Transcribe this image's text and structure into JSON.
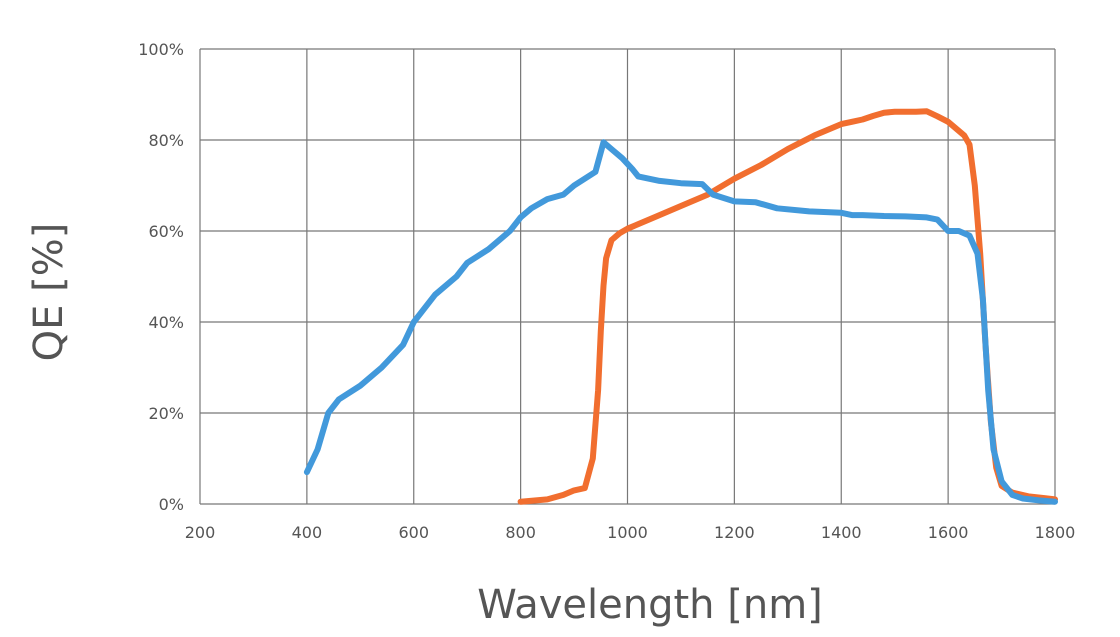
{
  "chart_data": {
    "type": "line",
    "title": "",
    "xlabel": "Wavelength [nm]",
    "ylabel": "QE [%]",
    "xlim": [
      200,
      1800
    ],
    "ylim": [
      0,
      100
    ],
    "xticks": [
      200,
      400,
      600,
      800,
      1000,
      1200,
      1400,
      1600,
      1800
    ],
    "xtick_labels": [
      "200",
      "400",
      "600",
      "800",
      "1000",
      "1200",
      "1400",
      "1600",
      "1800"
    ],
    "yticks": [
      0,
      20,
      40,
      60,
      80,
      100
    ],
    "ytick_labels": [
      "0%",
      "20%",
      "40%",
      "60%",
      "80%",
      "100%"
    ],
    "grid": true,
    "series": [
      {
        "name": "blue",
        "color": "#4299DB",
        "x": [
          400,
          420,
          440,
          460,
          500,
          540,
          580,
          600,
          640,
          680,
          700,
          740,
          780,
          800,
          820,
          850,
          880,
          900,
          940,
          955,
          970,
          990,
          1010,
          1020,
          1060,
          1100,
          1140,
          1160,
          1200,
          1240,
          1280,
          1340,
          1400,
          1420,
          1440,
          1480,
          1520,
          1560,
          1580,
          1600,
          1620,
          1640,
          1655,
          1665,
          1675,
          1685,
          1700,
          1720,
          1740,
          1770,
          1800
        ],
        "y": [
          7,
          12,
          20,
          23,
          26,
          30,
          35,
          40,
          46,
          50,
          53,
          56,
          60,
          63,
          65,
          67,
          68,
          70,
          73,
          79.5,
          78,
          76,
          73.5,
          72,
          71,
          70.5,
          70.3,
          68,
          66.5,
          66.3,
          65,
          64.3,
          64,
          63.5,
          63.5,
          63.3,
          63.2,
          63,
          62.5,
          60,
          60,
          59,
          55,
          45,
          25,
          12,
          5,
          2,
          1.2,
          0.8,
          0.5
        ]
      },
      {
        "name": "orange",
        "color": "#F16E2F",
        "x": [
          800,
          850,
          880,
          900,
          920,
          935,
          945,
          950,
          955,
          960,
          970,
          985,
          1000,
          1050,
          1100,
          1150,
          1200,
          1250,
          1300,
          1350,
          1400,
          1420,
          1440,
          1460,
          1480,
          1500,
          1540,
          1560,
          1580,
          1600,
          1630,
          1640,
          1650,
          1660,
          1670,
          1680,
          1690,
          1700,
          1720,
          1750,
          1780,
          1800
        ],
        "y": [
          0.5,
          1,
          2,
          3,
          3.5,
          10,
          25,
          38,
          48,
          54,
          58,
          59.5,
          60.5,
          63,
          65.5,
          68,
          71.5,
          74.5,
          78,
          81,
          83.5,
          84,
          84.5,
          85.3,
          86,
          86.2,
          86.2,
          86.3,
          85.2,
          84,
          81,
          79,
          70,
          55,
          35,
          18,
          8,
          4,
          2.5,
          1.7,
          1.3,
          1
        ]
      }
    ]
  }
}
